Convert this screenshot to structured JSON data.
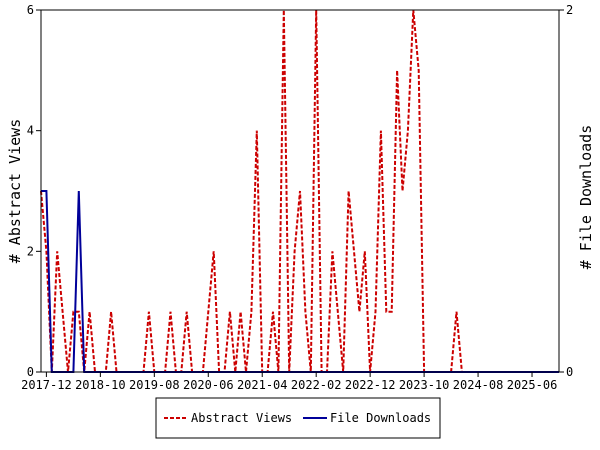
{
  "chart_data": {
    "type": "line",
    "x_tick_labels": [
      "2017-12",
      "2018-10",
      "2019-08",
      "2020-06",
      "2021-04",
      "2022-02",
      "2022-12",
      "2023-10",
      "2024-08",
      "2025-06"
    ],
    "y_left": {
      "label": "# Abstract Views",
      "min": 0,
      "max": 6,
      "ticks": [
        "0",
        "2",
        "4",
        "6"
      ]
    },
    "y_right": {
      "label": "# File Downloads",
      "min": 0,
      "max": 2,
      "ticks": [
        "0",
        "2"
      ]
    },
    "x_range": [
      "2017-11",
      "2025-11"
    ],
    "grid": false,
    "legend_position": "bottom",
    "series": [
      {
        "name": "Abstract Views",
        "color": "#cc0000",
        "style": "dashed",
        "axis": "left",
        "points": [
          [
            "2017-11",
            3
          ],
          [
            "2017-12",
            2
          ],
          [
            "2018-01",
            0
          ],
          [
            "2018-02",
            2
          ],
          [
            "2018-03",
            1
          ],
          [
            "2018-04",
            0
          ],
          [
            "2018-05",
            1
          ],
          [
            "2018-06",
            1
          ],
          [
            "2018-07",
            0
          ],
          [
            "2018-08",
            1
          ],
          [
            "2018-09",
            0
          ],
          [
            "2018-10",
            0
          ],
          [
            "2018-11",
            0
          ],
          [
            "2018-12",
            1
          ],
          [
            "2019-01",
            0
          ],
          [
            "2019-02",
            0
          ],
          [
            "2019-03",
            0
          ],
          [
            "2019-04",
            0
          ],
          [
            "2019-05",
            0
          ],
          [
            "2019-06",
            0
          ],
          [
            "2019-07",
            1
          ],
          [
            "2019-08",
            0
          ],
          [
            "2019-09",
            0
          ],
          [
            "2019-10",
            0
          ],
          [
            "2019-11",
            1
          ],
          [
            "2019-12",
            0
          ],
          [
            "2020-01",
            0
          ],
          [
            "2020-02",
            1
          ],
          [
            "2020-03",
            0
          ],
          [
            "2020-04",
            0
          ],
          [
            "2020-05",
            0
          ],
          [
            "2020-06",
            1
          ],
          [
            "2020-07",
            2
          ],
          [
            "2020-08",
            0
          ],
          [
            "2020-09",
            0
          ],
          [
            "2020-10",
            1
          ],
          [
            "2020-11",
            0
          ],
          [
            "2020-12",
            1
          ],
          [
            "2021-01",
            0
          ],
          [
            "2021-02",
            1
          ],
          [
            "2021-03",
            4
          ],
          [
            "2021-04",
            0
          ],
          [
            "2021-05",
            0
          ],
          [
            "2021-06",
            1
          ],
          [
            "2021-07",
            0
          ],
          [
            "2021-08",
            6
          ],
          [
            "2021-09",
            0
          ],
          [
            "2021-10",
            2
          ],
          [
            "2021-11",
            3
          ],
          [
            "2021-12",
            1
          ],
          [
            "2022-01",
            0
          ],
          [
            "2022-02",
            6
          ],
          [
            "2022-03",
            0
          ],
          [
            "2022-04",
            0
          ],
          [
            "2022-05",
            2
          ],
          [
            "2022-06",
            1
          ],
          [
            "2022-07",
            0
          ],
          [
            "2022-08",
            3
          ],
          [
            "2022-09",
            2
          ],
          [
            "2022-10",
            1
          ],
          [
            "2022-11",
            2
          ],
          [
            "2022-12",
            0
          ],
          [
            "2023-01",
            1
          ],
          [
            "2023-02",
            4
          ],
          [
            "2023-03",
            1
          ],
          [
            "2023-04",
            1
          ],
          [
            "2023-05",
            5
          ],
          [
            "2023-06",
            3
          ],
          [
            "2023-07",
            4
          ],
          [
            "2023-08",
            6
          ],
          [
            "2023-09",
            5
          ],
          [
            "2023-10",
            0
          ],
          [
            "2023-11",
            0
          ],
          [
            "2023-12",
            0
          ],
          [
            "2024-01",
            0
          ],
          [
            "2024-02",
            0
          ],
          [
            "2024-03",
            0
          ],
          [
            "2024-04",
            1
          ],
          [
            "2024-05",
            0
          ],
          [
            "2024-06",
            0
          ],
          [
            "2024-07",
            0
          ],
          [
            "2024-08",
            0
          ],
          [
            "2024-09",
            0
          ],
          [
            "2024-10",
            0
          ],
          [
            "2024-11",
            0
          ],
          [
            "2024-12",
            0
          ],
          [
            "2025-01",
            0
          ],
          [
            "2025-02",
            0
          ],
          [
            "2025-03",
            0
          ],
          [
            "2025-04",
            0
          ],
          [
            "2025-05",
            0
          ],
          [
            "2025-06",
            0
          ],
          [
            "2025-07",
            0
          ],
          [
            "2025-08",
            0
          ],
          [
            "2025-09",
            0
          ],
          [
            "2025-10",
            0
          ],
          [
            "2025-11",
            0
          ]
        ]
      },
      {
        "name": "File Downloads",
        "color": "#000099",
        "style": "solid",
        "axis": "right",
        "points": [
          [
            "2017-11",
            1
          ],
          [
            "2017-12",
            1
          ],
          [
            "2018-01",
            0
          ],
          [
            "2018-02",
            0
          ],
          [
            "2018-03",
            0
          ],
          [
            "2018-04",
            0
          ],
          [
            "2018-05",
            0
          ],
          [
            "2018-06",
            1
          ],
          [
            "2018-07",
            0
          ],
          [
            "2018-08",
            0
          ],
          [
            "2018-09",
            0
          ],
          [
            "2018-10",
            0
          ],
          [
            "2018-11",
            0
          ],
          [
            "2018-12",
            0
          ],
          [
            "2019-06",
            0
          ],
          [
            "2020-06",
            0
          ],
          [
            "2021-06",
            0
          ],
          [
            "2022-06",
            0
          ],
          [
            "2023-06",
            0
          ],
          [
            "2024-06",
            0
          ],
          [
            "2025-06",
            0
          ],
          [
            "2025-11",
            0
          ]
        ]
      }
    ]
  }
}
